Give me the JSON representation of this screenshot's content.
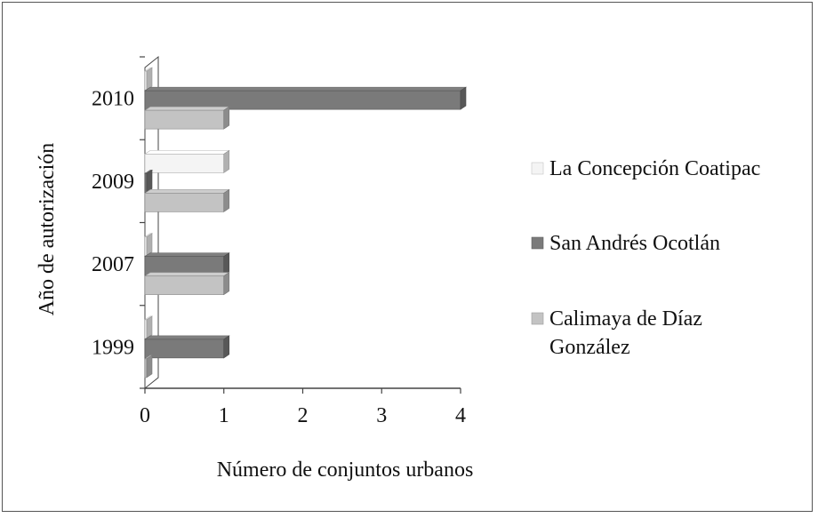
{
  "chart_data": {
    "type": "bar",
    "orientation": "horizontal",
    "style": "3d-clustered",
    "xlabel": "Número de conjuntos urbanos",
    "ylabel": "Año de autorización",
    "categories": [
      "1999",
      "2007",
      "2009",
      "2010"
    ],
    "xlim": [
      0,
      4
    ],
    "xticks": [
      "0",
      "1",
      "2",
      "3",
      "4"
    ],
    "legend_position": "right",
    "series": [
      {
        "name": "La Concepción Coatipac",
        "color": "#f4f4f4",
        "values": [
          0,
          0,
          1,
          0
        ]
      },
      {
        "name": "San Andrés Ocotlán",
        "color": "#7a7a7a",
        "values": [
          1,
          1,
          0,
          4
        ]
      },
      {
        "name": "Calimaya de Díaz González",
        "color": "#c3c3c3",
        "values": [
          0,
          1,
          1,
          1
        ]
      }
    ],
    "legend_lines": [
      [
        "La Concepción Coatipac"
      ],
      [
        "San Andrés Ocotlán"
      ],
      [
        "Calimaya de Díaz",
        "González"
      ]
    ]
  }
}
